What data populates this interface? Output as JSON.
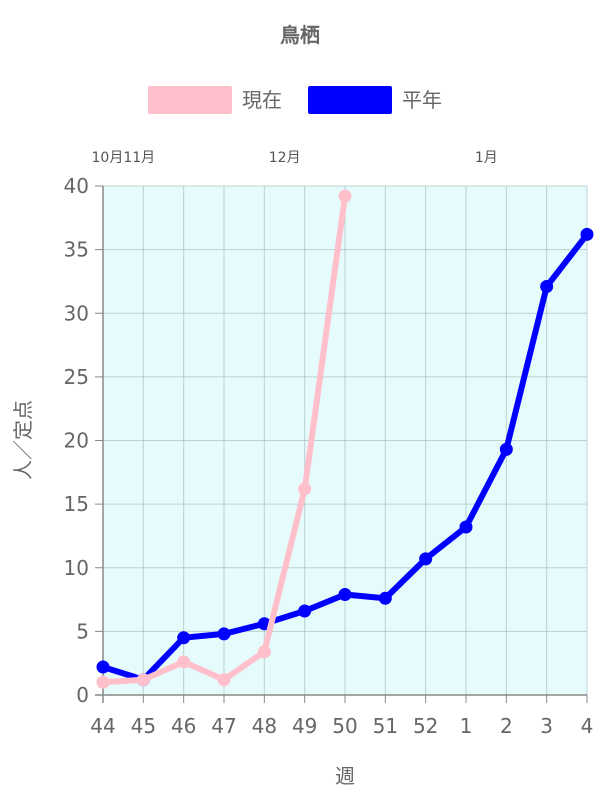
{
  "chart_data": {
    "type": "line",
    "title": "鳥栖",
    "xlabel": "週",
    "ylabel": "人／定点",
    "categories": [
      "44",
      "45",
      "46",
      "47",
      "48",
      "49",
      "50",
      "51",
      "52",
      "1",
      "2",
      "3",
      "4"
    ],
    "ylim": [
      0,
      40
    ],
    "yticks": [
      0,
      5,
      10,
      15,
      20,
      25,
      30,
      35,
      40
    ],
    "grid": true,
    "plot_background": "#e6fcfc",
    "legend": {
      "position": "top",
      "entries": [
        {
          "label": "現在",
          "color": "#ffc0cb"
        },
        {
          "label": "平年",
          "color": "#0000ff"
        }
      ]
    },
    "month_labels": [
      {
        "label": "10月11月",
        "at_category": "45"
      },
      {
        "label": "12月",
        "at_category": "49"
      },
      {
        "label": "1月",
        "at_category": "2"
      }
    ],
    "series": [
      {
        "name": "現在",
        "color": "#ffc0cb",
        "values": [
          1.0,
          1.2,
          2.6,
          1.2,
          3.4,
          16.2,
          39.2,
          null,
          null,
          null,
          null,
          null,
          null
        ]
      },
      {
        "name": "平年",
        "color": "#0000ff",
        "values": [
          2.2,
          1.2,
          4.5,
          4.8,
          5.6,
          6.6,
          7.9,
          7.6,
          10.7,
          13.2,
          19.3,
          32.1,
          36.2
        ]
      }
    ]
  }
}
